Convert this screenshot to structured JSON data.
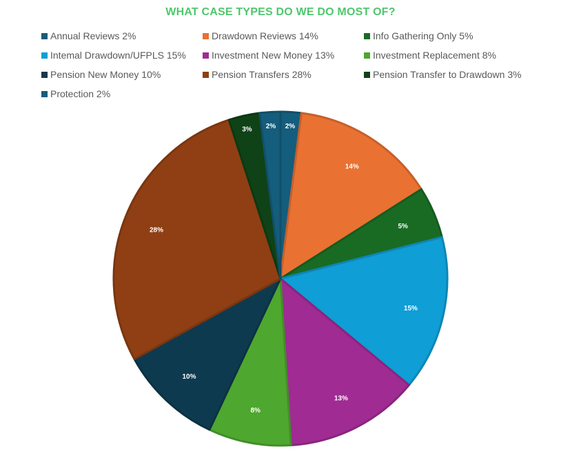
{
  "title": "WHAT CASE TYPES DO WE DO MOST OF?",
  "legend": [
    {
      "label": "Annual Reviews 2%",
      "color": "#155d7c"
    },
    {
      "label": "Drawdown Reviews 14%",
      "color": "#e97132"
    },
    {
      "label": "Info Gathering Only 5%",
      "color": "#196b24"
    },
    {
      "label": "Intemal Drawdown/UFPLS 15%",
      "color": "#0f9ed5"
    },
    {
      "label": "Investment New Money 13%",
      "color": "#a02b93"
    },
    {
      "label": "Investment Replacement 8%",
      "color": "#4ea72e"
    },
    {
      "label": "Pension New Money 10%",
      "color": "#0e3a4f"
    },
    {
      "label": "Pension Transfers 28%",
      "color": "#8f3f13"
    },
    {
      "label": "Pension Transfer to Drawdown 3%",
      "color": "#0f4216"
    },
    {
      "label": "Protection 2%",
      "color": "#155d7c"
    }
  ],
  "chart_data": {
    "type": "pie",
    "title": "WHAT CASE TYPES DO WE DO MOST OF?",
    "categories": [
      "Annual Reviews",
      "Drawdown Reviews",
      "Info Gathering Only",
      "Internal Drawdown/UFPLS",
      "Investment New Money",
      "Investment Replacement",
      "Pension New Money",
      "Pension Transfers",
      "Pension Transfer to Drawdown",
      "Protection"
    ],
    "values": [
      2,
      14,
      5,
      15,
      13,
      8,
      10,
      28,
      3,
      2
    ],
    "data_labels": [
      "2%",
      "14%",
      "5%",
      "15%",
      "13%",
      "8%",
      "10%",
      "28%",
      "3%",
      "2%"
    ],
    "colors": [
      "#155d7c",
      "#e97132",
      "#196b24",
      "#0f9ed5",
      "#a02b93",
      "#4ea72e",
      "#0e3a4f",
      "#8f3f13",
      "#0f4216",
      "#155d7c"
    ],
    "start_angle_deg": 0,
    "direction": "clockwise",
    "legend_position": "top"
  }
}
